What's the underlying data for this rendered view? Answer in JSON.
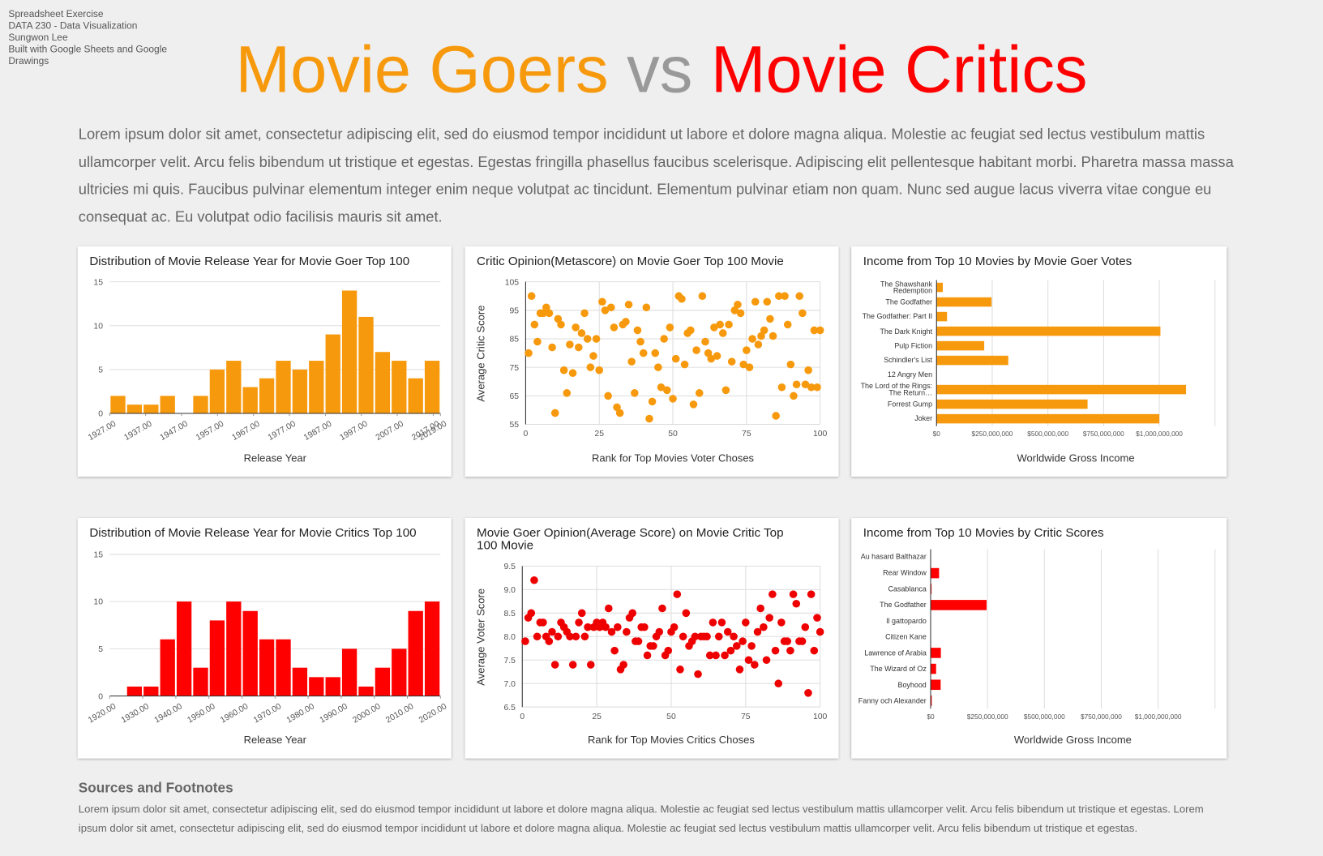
{
  "header": {
    "meta": [
      "Spreadsheet Exercise",
      "DATA 230 - Data Visualization",
      "Sungwon Lee",
      "Built with Google Sheets and Google Drawings"
    ],
    "title": [
      "Movie Goers",
      "vs",
      "Movie Critics"
    ]
  },
  "intro": "Lorem ipsum dolor sit amet, consectetur adipiscing elit, sed do eiusmod tempor incididunt ut labore et dolore magna aliqua. Molestie ac feugiat sed lectus vestibulum mattis ullamcorper velit. Arcu felis bibendum ut tristique et egestas. Egestas fringilla phasellus faucibus scelerisque. Adipiscing elit pellentesque habitant morbi. Pharetra massa massa ultricies mi quis. Faucibus pulvinar elementum integer enim neque volutpat ac tincidunt. Elementum pulvinar etiam non quam. Nunc sed augue lacus viverra vitae congue eu consequat ac. Eu volutpat odio facilisis mauris sit amet.",
  "chart_data": [
    {
      "type": "histogram",
      "title": "Distribution of Movie Release Year for Movie Goer Top 100",
      "xlabel": "Release Year",
      "color": "#f7990c",
      "bins": [
        1927,
        1931.6,
        1936.2,
        1940.8,
        1945.4,
        1950,
        1954.6,
        1959.2,
        1963.8,
        1968.4,
        1973,
        1977.6,
        1982.2,
        1986.8,
        1991.4,
        1996,
        2000.6,
        2005.2,
        2009.8,
        2014.4,
        2019
      ],
      "values": [
        2,
        1,
        1,
        2,
        0,
        2,
        5,
        6,
        3,
        4,
        6,
        5,
        6,
        9,
        14,
        11,
        7,
        6,
        4,
        6
      ],
      "xlim": [
        1927,
        2019
      ],
      "xticks": [
        {
          "value": 1927,
          "label": "1927.00"
        },
        {
          "value": 1937,
          "label": "1937.00"
        },
        {
          "value": 1947,
          "label": "1947.00"
        },
        {
          "value": 1957,
          "label": "1957.00"
        },
        {
          "value": 1967,
          "label": "1967.00"
        },
        {
          "value": 1977,
          "label": "1977.00"
        },
        {
          "value": 1987,
          "label": "1987.00"
        },
        {
          "value": 1997,
          "label": "1997.00"
        },
        {
          "value": 2007,
          "label": "2007.00"
        },
        {
          "value": 2017,
          "label": "2017.00"
        },
        {
          "value": 2019,
          "label": "2019.00"
        }
      ],
      "ylim": [
        0,
        15
      ],
      "yticks": [
        0,
        5,
        10,
        15
      ],
      "grid": true
    },
    {
      "type": "scatter",
      "title": "Critic Opinion(Metascore) on Movie Goer Top 100 Movie",
      "xlabel": "Rank for Top Movies Voter Choses",
      "ylabel": "Average Critic Score",
      "color": "#f7990c",
      "x": [
        1,
        2,
        3,
        4,
        5,
        6,
        7,
        8,
        9,
        10,
        11,
        12,
        13,
        14,
        15,
        16,
        17,
        18,
        19,
        20,
        21,
        22,
        23,
        24,
        25,
        26,
        27,
        28,
        29,
        30,
        31,
        32,
        33,
        34,
        35,
        36,
        37,
        38,
        39,
        40,
        41,
        42,
        43,
        44,
        45,
        46,
        47,
        48,
        49,
        50,
        51,
        52,
        53,
        54,
        55,
        56,
        57,
        58,
        59,
        60,
        61,
        62,
        63,
        64,
        65,
        66,
        67,
        68,
        69,
        70,
        71,
        72,
        73,
        74,
        75,
        76,
        77,
        78,
        79,
        80,
        81,
        82,
        83,
        84,
        85,
        86,
        87,
        88,
        89,
        90,
        91,
        92,
        93,
        94,
        95,
        96,
        97,
        98,
        99,
        100
      ],
      "values": [
        80,
        100,
        90,
        84,
        94,
        94,
        96,
        94,
        82,
        59,
        92,
        90,
        74,
        66,
        83,
        73,
        89,
        82,
        87,
        94,
        85,
        75,
        79,
        85,
        74,
        98,
        95,
        65,
        96,
        89,
        61,
        59,
        90,
        91,
        97,
        77,
        66,
        88,
        84,
        80,
        96,
        57,
        63,
        80,
        75,
        68,
        85,
        67,
        89,
        64,
        78,
        100,
        99,
        76,
        87,
        88,
        62,
        81,
        66,
        100,
        84,
        80,
        78,
        89,
        79,
        90,
        87,
        67,
        90,
        77,
        95,
        97,
        94,
        76,
        81,
        75,
        85,
        98,
        83,
        86,
        88,
        98,
        92,
        86,
        58,
        100,
        68,
        100,
        90,
        76,
        65,
        69,
        100,
        94,
        69,
        74,
        68,
        88,
        68,
        88
      ],
      "xlim": [
        0,
        100
      ],
      "xticks": [
        0,
        25,
        50,
        75,
        100
      ],
      "ylim": [
        55,
        105
      ],
      "yticks": [
        55,
        65,
        75,
        85,
        95,
        105
      ],
      "grid": true
    },
    {
      "type": "bar",
      "orientation": "horizontal",
      "title": "Income from Top 10 Movies by Movie Goer Votes",
      "xlabel": "Worldwide Gross Income",
      "color": "#f7990c",
      "categories": [
        "The Shawshank Redemption",
        "The Godfather",
        "The Godfather: Part II",
        "The Dark Knight",
        "Pulp Fiction",
        "Schindler's List",
        "12 Angry Men",
        "The Lord of the Rings: The Return…",
        "Forrest Gump",
        "Joker"
      ],
      "values": [
        28000000,
        247000000,
        47000000,
        1005000000,
        214000000,
        322000000,
        1000,
        1120000000,
        678000000,
        1000000000
      ],
      "xlim": [
        0,
        1250000000
      ],
      "xticks": [
        {
          "value": 0,
          "label": "$0"
        },
        {
          "value": 250000000,
          "label": "$250,000,000"
        },
        {
          "value": 500000000,
          "label": "$500,000,000"
        },
        {
          "value": 750000000,
          "label": "$750,000,000"
        },
        {
          "value": 1000000000,
          "label": "$1,000,000,000"
        }
      ],
      "grid": true
    },
    {
      "type": "histogram",
      "title": "Distribution of Movie Release Year for Movie Critics Top 100",
      "xlabel": "Release Year",
      "color": "#ff0000",
      "bins": [
        1920,
        1925,
        1930,
        1935,
        1940,
        1945,
        1950,
        1955,
        1960,
        1965,
        1970,
        1975,
        1980,
        1985,
        1990,
        1995,
        2000,
        2005,
        2010,
        2015,
        2020
      ],
      "values": [
        0,
        1,
        1,
        6,
        10,
        3,
        8,
        10,
        9,
        6,
        6,
        3,
        2,
        2,
        5,
        1,
        3,
        5,
        9,
        10
      ],
      "xlim": [
        1920,
        2020
      ],
      "xticks": [
        {
          "value": 1920,
          "label": "1920.00"
        },
        {
          "value": 1930,
          "label": "1930.00"
        },
        {
          "value": 1940,
          "label": "1940.00"
        },
        {
          "value": 1950,
          "label": "1950.00"
        },
        {
          "value": 1960,
          "label": "1960.00"
        },
        {
          "value": 1970,
          "label": "1970.00"
        },
        {
          "value": 1980,
          "label": "1980.00"
        },
        {
          "value": 1990,
          "label": "1990.00"
        },
        {
          "value": 2000,
          "label": "2000.00"
        },
        {
          "value": 2010,
          "label": "2010.00"
        },
        {
          "value": 2020,
          "label": "2020.00"
        }
      ],
      "ylim": [
        0,
        15
      ],
      "yticks": [
        0,
        5,
        10,
        15
      ],
      "grid": true
    },
    {
      "type": "scatter",
      "title": "Movie Goer Opinion(Average Score) on Movie Critic Top 100 Movie",
      "xlabel": "Rank for Top Movies Critics Choses",
      "ylabel": "Average Voter Score",
      "color": "#ee0000",
      "x": [
        1,
        2,
        3,
        4,
        5,
        6,
        7,
        8,
        9,
        10,
        11,
        12,
        13,
        14,
        15,
        16,
        17,
        18,
        19,
        20,
        21,
        22,
        23,
        24,
        25,
        26,
        27,
        28,
        29,
        30,
        31,
        32,
        33,
        34,
        35,
        36,
        37,
        38,
        39,
        40,
        41,
        42,
        43,
        44,
        45,
        46,
        47,
        48,
        49,
        50,
        51,
        52,
        53,
        54,
        55,
        56,
        57,
        58,
        59,
        60,
        61,
        62,
        63,
        64,
        65,
        66,
        67,
        68,
        69,
        70,
        71,
        72,
        73,
        74,
        75,
        76,
        77,
        78,
        79,
        80,
        81,
        82,
        83,
        84,
        85,
        86,
        87,
        88,
        89,
        90,
        91,
        92,
        93,
        94,
        95,
        96,
        97,
        98,
        99,
        100
      ],
      "values": [
        7.9,
        8.4,
        8.5,
        9.2,
        8.0,
        8.3,
        8.3,
        8.0,
        7.9,
        8.1,
        7.4,
        8.0,
        8.3,
        8.2,
        8.1,
        8.0,
        7.4,
        8.0,
        8.3,
        8.5,
        8.0,
        8.2,
        7.4,
        8.2,
        8.3,
        8.2,
        8.3,
        8.2,
        8.6,
        8.1,
        7.7,
        8.2,
        7.3,
        7.4,
        8.1,
        8.4,
        8.5,
        7.9,
        7.9,
        8.2,
        8.2,
        7.6,
        7.8,
        7.8,
        8.0,
        8.1,
        8.6,
        7.6,
        7.7,
        8.1,
        8.2,
        8.9,
        7.3,
        8.0,
        8.5,
        7.8,
        7.9,
        8.0,
        7.2,
        8.0,
        8.0,
        8.0,
        7.6,
        8.3,
        7.6,
        8.0,
        8.3,
        7.6,
        8.1,
        7.7,
        8.0,
        7.8,
        7.3,
        7.9,
        8.3,
        7.5,
        7.8,
        7.4,
        8.1,
        8.6,
        8.2,
        7.5,
        8.4,
        8.9,
        7.7,
        7.0,
        8.3,
        7.9,
        7.9,
        7.7,
        8.9,
        8.7,
        7.9,
        7.9,
        8.2,
        6.8,
        8.9,
        7.7,
        8.4,
        8.1
      ],
      "xlim": [
        0,
        100
      ],
      "xticks": [
        0,
        25,
        50,
        75,
        100
      ],
      "ylim": [
        6.5,
        9.5
      ],
      "yticks": [
        6.5,
        {
          "value": 7,
          "label": "7.0"
        },
        7.5,
        {
          "value": 8,
          "label": "8.0"
        },
        8.5,
        {
          "value": 9,
          "label": "9.0"
        },
        9.5
      ],
      "grid": true
    },
    {
      "type": "bar",
      "orientation": "horizontal",
      "title": "Income from Top 10 Movies by Critic Scores",
      "xlabel": "Worldwide Gross Income",
      "color": "#ff0000",
      "categories": [
        "Au hasard Balthazar",
        "Rear Window",
        "Casablanca",
        "The Godfather",
        "Il gattopardo",
        "Citizen Kane",
        "Lawrence of Arabia",
        "The Wizard of Oz",
        "Boyhood",
        "Fanny och Alexander"
      ],
      "values": [
        40000,
        37000000,
        4000000,
        246000000,
        500000,
        1600000,
        45000000,
        24000000,
        44000000,
        5000000
      ],
      "xlim": [
        0,
        1250000000
      ],
      "xticks": [
        {
          "value": 0,
          "label": "$0"
        },
        {
          "value": 250000000,
          "label": "$250,000,000"
        },
        {
          "value": 500000000,
          "label": "$500,000,000"
        },
        {
          "value": 750000000,
          "label": "$750,000,000"
        },
        {
          "value": 1000000000,
          "label": "$1,000,000,000"
        }
      ],
      "grid": true
    }
  ],
  "footnotes": {
    "heading": "Sources and Footnotes",
    "text": "Lorem ipsum dolor sit amet, consectetur adipiscing elit, sed do eiusmod tempor incididunt ut labore et dolore magna aliqua. Molestie ac feugiat sed lectus vestibulum mattis ullamcorper velit. Arcu felis bibendum ut tristique et egestas. Lorem ipsum dolor sit amet, consectetur adipiscing elit, sed do eiusmod tempor incididunt ut labore et dolore magna aliqua. Molestie ac feugiat sed lectus vestibulum mattis ullamcorper velit. Arcu felis bibendum ut tristique et egestas."
  }
}
